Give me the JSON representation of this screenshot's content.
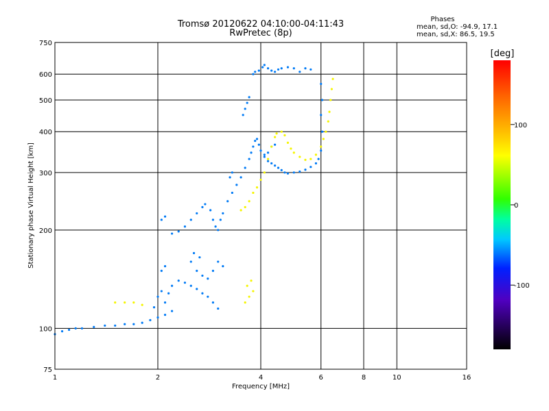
{
  "chart_data": {
    "type": "scatter",
    "title": "Tromsø 20120622 04:10:00-04:11:43",
    "subtitle": "RwPretec (8p)",
    "xlabel": "Frequency [MHz]",
    "ylabel": "Stationary phase Virtual Height [km]",
    "x_scale": "log",
    "y_scale": "log",
    "xlim": [
      1,
      16
    ],
    "ylim": [
      75,
      750
    ],
    "x_ticks": [
      1,
      2,
      4,
      6,
      8,
      10,
      16
    ],
    "x_tick_labels": [
      "1",
      "2",
      "4",
      "6",
      "8",
      "10",
      "16"
    ],
    "y_ticks": [
      75,
      100,
      200,
      300,
      400,
      500,
      600,
      750
    ],
    "y_tick_labels": [
      "75",
      "100",
      "200",
      "300",
      "400",
      "500",
      "600",
      "750"
    ],
    "grid": true,
    "stats": {
      "heading": "Phases",
      "line1": "mean, sd,O: -94.9, 17.1",
      "line2": "mean, sd,X:  86.5, 19.5"
    },
    "colorbar": {
      "label": "[deg]",
      "range": [
        -180,
        180
      ],
      "ticks": [
        100,
        0,
        -100
      ],
      "tick_labels": [
        "100",
        "0",
        "-100"
      ]
    },
    "series": [
      {
        "name": "",
        "phase_deg": -100,
        "points": [
          [
            1.0,
            96
          ],
          [
            1.05,
            98
          ],
          [
            1.1,
            99
          ],
          [
            1.15,
            100
          ],
          [
            1.2,
            100
          ],
          [
            1.3,
            101
          ],
          [
            1.4,
            102
          ],
          [
            1.5,
            102
          ],
          [
            1.6,
            103
          ],
          [
            1.7,
            103
          ],
          [
            1.8,
            104
          ],
          [
            1.9,
            106
          ],
          [
            2.0,
            108
          ],
          [
            2.1,
            110
          ],
          [
            2.2,
            113
          ],
          [
            1.95,
            116
          ],
          [
            2.0,
            125
          ],
          [
            2.05,
            130
          ],
          [
            2.1,
            120
          ],
          [
            2.15,
            128
          ],
          [
            2.2,
            135
          ],
          [
            2.3,
            140
          ],
          [
            2.4,
            138
          ],
          [
            2.5,
            135
          ],
          [
            2.6,
            132
          ],
          [
            2.7,
            128
          ],
          [
            2.8,
            125
          ],
          [
            2.9,
            120
          ],
          [
            3.0,
            115
          ],
          [
            2.05,
            150
          ],
          [
            2.1,
            155
          ],
          [
            2.5,
            160
          ],
          [
            2.6,
            150
          ],
          [
            2.7,
            145
          ],
          [
            2.8,
            142
          ],
          [
            2.9,
            150
          ],
          [
            3.0,
            160
          ],
          [
            3.1,
            155
          ],
          [
            2.55,
            170
          ],
          [
            2.65,
            165
          ],
          [
            2.05,
            215
          ],
          [
            2.1,
            220
          ],
          [
            2.2,
            195
          ],
          [
            2.3,
            198
          ],
          [
            2.4,
            205
          ],
          [
            2.5,
            215
          ],
          [
            2.6,
            225
          ],
          [
            2.7,
            235
          ],
          [
            2.75,
            240
          ],
          [
            2.85,
            230
          ],
          [
            2.9,
            215
          ],
          [
            2.95,
            205
          ],
          [
            3.0,
            200
          ],
          [
            3.05,
            215
          ],
          [
            3.1,
            225
          ],
          [
            3.2,
            245
          ],
          [
            3.3,
            260
          ],
          [
            3.4,
            275
          ],
          [
            3.5,
            290
          ],
          [
            3.6,
            310
          ],
          [
            3.7,
            330
          ],
          [
            3.75,
            345
          ],
          [
            3.8,
            360
          ],
          [
            3.85,
            375
          ],
          [
            3.9,
            380
          ],
          [
            3.95,
            365
          ],
          [
            4.0,
            350
          ],
          [
            4.1,
            335
          ],
          [
            4.2,
            325
          ],
          [
            4.3,
            320
          ],
          [
            4.4,
            315
          ],
          [
            4.5,
            310
          ],
          [
            4.6,
            305
          ],
          [
            4.7,
            300
          ],
          [
            4.8,
            298
          ],
          [
            5.0,
            300
          ],
          [
            5.2,
            302
          ],
          [
            5.4,
            306
          ],
          [
            5.6,
            312
          ],
          [
            5.8,
            320
          ],
          [
            5.9,
            330
          ],
          [
            6.0,
            350
          ],
          [
            6.05,
            400
          ],
          [
            6.0,
            450
          ],
          [
            6.05,
            500
          ],
          [
            6.0,
            560
          ],
          [
            3.55,
            450
          ],
          [
            3.6,
            470
          ],
          [
            3.65,
            490
          ],
          [
            3.7,
            510
          ],
          [
            3.8,
            600
          ],
          [
            3.85,
            610
          ],
          [
            3.95,
            615
          ],
          [
            4.05,
            630
          ],
          [
            4.1,
            640
          ],
          [
            4.2,
            625
          ],
          [
            4.3,
            615
          ],
          [
            4.4,
            610
          ],
          [
            4.5,
            620
          ],
          [
            4.6,
            625
          ],
          [
            4.8,
            630
          ],
          [
            5.0,
            625
          ],
          [
            5.2,
            610
          ],
          [
            5.4,
            625
          ],
          [
            5.6,
            620
          ],
          [
            4.3,
            360
          ],
          [
            4.4,
            365
          ],
          [
            4.2,
            345
          ],
          [
            4.1,
            340
          ],
          [
            3.3,
            300
          ],
          [
            3.25,
            290
          ]
        ]
      },
      {
        "name": "",
        "phase_deg": 100,
        "points": [
          [
            3.5,
            230
          ],
          [
            3.6,
            235
          ],
          [
            3.7,
            245
          ],
          [
            3.8,
            260
          ],
          [
            3.9,
            270
          ],
          [
            4.0,
            285
          ],
          [
            4.1,
            300
          ],
          [
            4.2,
            330
          ],
          [
            4.3,
            360
          ],
          [
            4.4,
            385
          ],
          [
            4.45,
            395
          ],
          [
            4.6,
            400
          ],
          [
            4.7,
            390
          ],
          [
            4.8,
            370
          ],
          [
            4.9,
            355
          ],
          [
            5.0,
            345
          ],
          [
            5.2,
            335
          ],
          [
            5.4,
            328
          ],
          [
            5.6,
            330
          ],
          [
            5.8,
            340
          ],
          [
            6.0,
            360
          ],
          [
            6.1,
            380
          ],
          [
            6.2,
            400
          ],
          [
            6.3,
            430
          ],
          [
            6.35,
            460
          ],
          [
            6.4,
            500
          ],
          [
            6.45,
            540
          ],
          [
            6.5,
            580
          ],
          [
            3.6,
            120
          ],
          [
            3.7,
            125
          ],
          [
            3.8,
            130
          ],
          [
            3.65,
            135
          ],
          [
            3.75,
            140
          ],
          [
            1.5,
            120
          ],
          [
            1.6,
            120
          ],
          [
            1.7,
            120
          ],
          [
            1.8,
            118
          ]
        ]
      }
    ]
  }
}
